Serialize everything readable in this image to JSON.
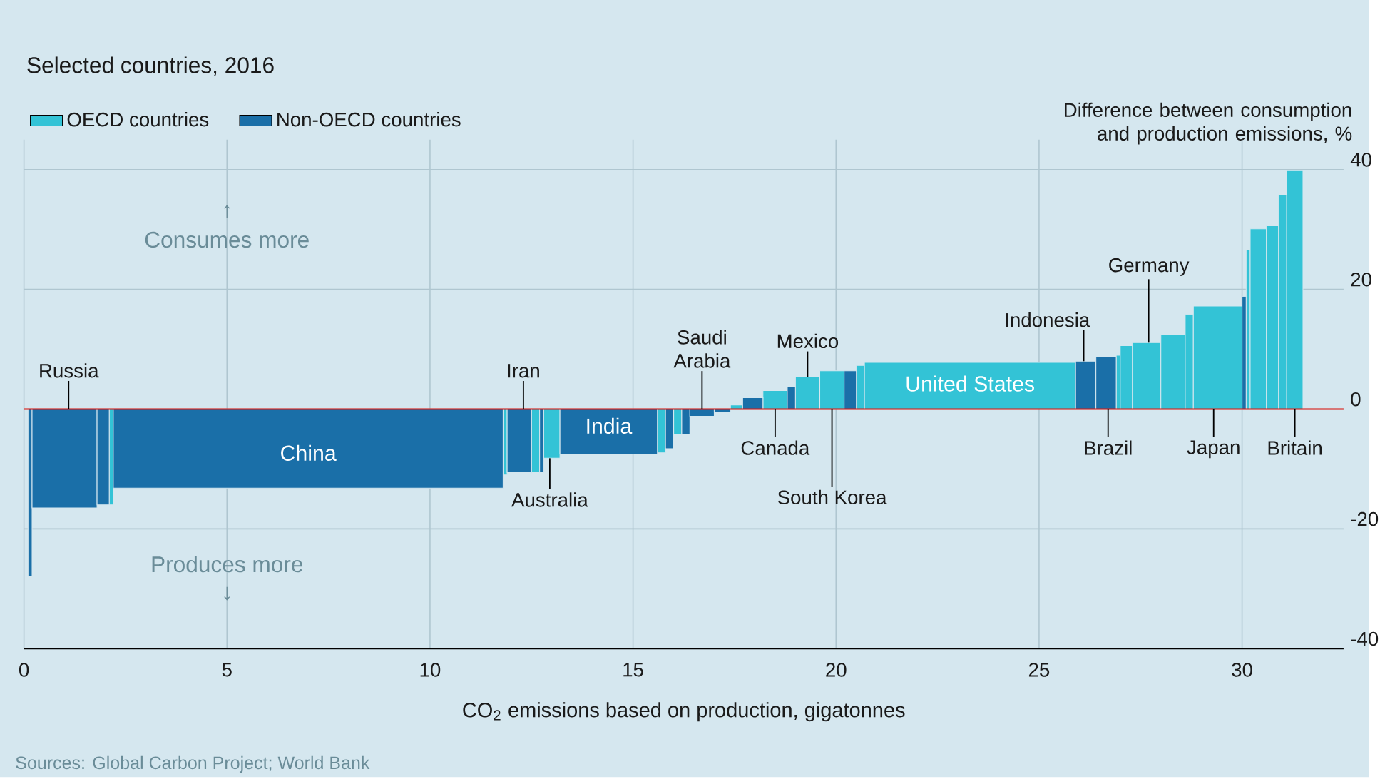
{
  "chart_data": {
    "type": "histogram",
    "title": "Selected countries, 2016",
    "xlabel": "CO$_{2}$ emissions based on production, gigatonnes",
    "ylabel": "Difference between consumption and production emissions, %",
    "bins": [
      0.1,
      0.2,
      1.8,
      2.1,
      2.2,
      11.8,
      11.9,
      12.5,
      12.7,
      12.8,
      13.2,
      15.6,
      15.8,
      16.0,
      16.2,
      16.4,
      17.0,
      17.4,
      17.7,
      18.2,
      18.8,
      19.0,
      19.6,
      20.2,
      20.5,
      20.7,
      25.9,
      26.4,
      26.9,
      27.0,
      27.3,
      28.0,
      28.6,
      28.8,
      30.0,
      30.1,
      30.2,
      30.6,
      30.9,
      31.1,
      31.5
    ],
    "series": [
      {
        "name": "OECD countries",
        "color": "#33c3d6",
        "values": [
          null,
          null,
          null,
          -16,
          null,
          -11,
          null,
          -10.6,
          null,
          -8.2,
          null,
          -7.3,
          null,
          -4.2,
          null,
          null,
          null,
          0.7,
          null,
          3.1,
          null,
          5.4,
          6.4,
          null,
          7.3,
          7.8,
          null,
          null,
          9.0,
          10.6,
          11.1,
          12.5,
          15.8,
          17.2,
          null,
          26.6,
          30.1,
          30.6,
          35.8,
          39.8
        ]
      },
      {
        "name": "Non-OECD countries",
        "color": "#1a6fa8",
        "values": [
          -28,
          -16.5,
          -16,
          null,
          -13.2,
          null,
          -10.6,
          null,
          -10.6,
          null,
          -7.5,
          null,
          -6.6,
          null,
          -4.2,
          -1.2,
          -0.5,
          null,
          1.9,
          null,
          3.8,
          null,
          null,
          6.4,
          null,
          null,
          8.0,
          8.7,
          null,
          null,
          null,
          null,
          null,
          null,
          18.8,
          null,
          null,
          null,
          null,
          null
        ]
      }
    ],
    "xlim": [
      0,
      32.5
    ],
    "ylim": [
      -40,
      45
    ],
    "xticks": [
      0,
      5,
      10,
      15,
      20,
      25,
      30
    ],
    "yticks": [
      -40,
      -20,
      0,
      20,
      40
    ],
    "grid": true,
    "legend": "top left",
    "ref_lines": [
      {
        "axis": "y",
        "value": 0,
        "color": "#e3120b"
      }
    ],
    "annotations": [
      "↑",
      "Consumes more",
      "Produces more",
      "↓",
      "Sources: Global Carbon Project; World Bank",
      {
        "text": "Russia",
        "x": 1.1,
        "y": 0
      },
      {
        "text": "China",
        "x": 7.0,
        "y": -13.2
      },
      {
        "text": "Iran",
        "x": 12.3,
        "y": 0
      },
      {
        "text": "Australia",
        "x": 12.95,
        "y": -8.2
      },
      {
        "text": "India",
        "x": 14.4,
        "y": -7.5
      },
      {
        "text": "Saudi Arabia",
        "x": 16.7,
        "y": 0
      },
      {
        "text": "Mexico",
        "x": 19.3,
        "y": 5.4
      },
      {
        "text": "Canada",
        "x": 18.5,
        "y": 0
      },
      {
        "text": "South Korea",
        "x": 19.9,
        "y": 0
      },
      {
        "text": "United States",
        "x": 23.3,
        "y": 7.8
      },
      {
        "text": "Indonesia",
        "x": 26.1,
        "y": 8.0
      },
      {
        "text": "Germany",
        "x": 27.7,
        "y": 11.1
      },
      {
        "text": "Brazil",
        "x": 26.7,
        "y": 0
      },
      {
        "text": "Japan",
        "x": 29.3,
        "y": 0
      },
      {
        "text": "Britain",
        "x": 31.3,
        "y": 0
      }
    ]
  }
}
